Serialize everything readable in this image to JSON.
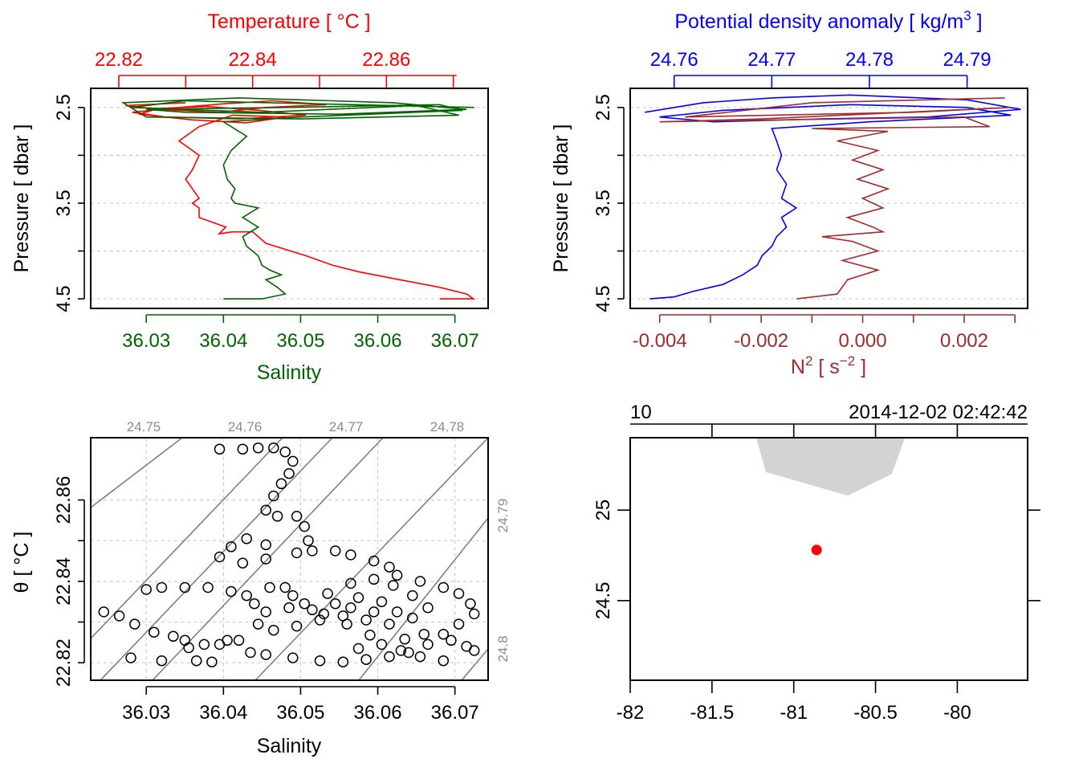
{
  "colors": {
    "temperature": "#ff0000",
    "salinity": "#006400",
    "density": "#0000ff",
    "n2": "#a52a2a",
    "grid": "#cccccc",
    "isopycnal": "#808080",
    "coast": "#d3d3d3",
    "station": "#ff0000"
  },
  "chart_data": [
    {
      "type": "line",
      "panel": "TS profile",
      "top_axis_label": "Temperature [ °C ]",
      "top_ticks": [
        "22.82",
        "22.84",
        "22.86"
      ],
      "top_tick_values": [
        22.82,
        22.84,
        22.86
      ],
      "bottom_axis_label": "Salinity",
      "bottom_ticks": [
        "36.03",
        "36.04",
        "36.05",
        "36.06",
        "36.07"
      ],
      "bottom_tick_values": [
        36.03,
        36.04,
        36.05,
        36.06,
        36.07
      ],
      "ylabel": "Pressure [ dbar ]",
      "y_ticks": [
        "2.5",
        "3.5",
        "4.5"
      ],
      "y_tick_values": [
        2.5,
        3.5,
        4.5
      ],
      "ylim": [
        4.6,
        2.3
      ],
      "temperature_xlim": [
        22.8158,
        22.8752
      ],
      "salinity_xlim": [
        36.0228,
        36.0743
      ],
      "grid": true,
      "series": [
        {
          "name": "Temperature",
          "x": [
            22.83,
            22.821,
            22.826,
            22.835,
            22.842,
            22.851,
            22.843,
            22.836,
            22.829,
            22.822,
            22.827,
            22.838,
            22.848,
            22.841,
            22.833,
            22.826,
            22.823,
            22.831,
            22.839,
            22.845,
            22.837,
            22.832,
            22.829,
            22.832,
            22.831,
            22.83,
            22.831,
            22.832,
            22.831,
            22.832,
            22.832,
            22.834,
            22.836,
            22.835,
            22.837,
            22.84,
            22.842,
            22.848,
            22.852,
            22.856,
            22.862,
            22.868,
            22.872,
            22.873,
            22.868
          ],
          "y": [
            2.45,
            2.48,
            2.52,
            2.55,
            2.5,
            2.47,
            2.43,
            2.46,
            2.5,
            2.55,
            2.6,
            2.62,
            2.58,
            2.53,
            2.49,
            2.51,
            2.57,
            2.63,
            2.66,
            2.6,
            2.58,
            2.7,
            2.85,
            3.0,
            3.15,
            3.25,
            3.35,
            3.45,
            3.5,
            3.55,
            3.65,
            3.7,
            3.75,
            3.82,
            3.8,
            3.8,
            3.92,
            4.05,
            4.15,
            4.22,
            4.3,
            4.38,
            4.45,
            4.5,
            4.5
          ]
        },
        {
          "name": "Salinity",
          "x": [
            36.0725,
            36.035,
            36.028,
            36.045,
            36.065,
            36.0705,
            36.05,
            36.03,
            36.027,
            36.042,
            36.062,
            36.0715,
            36.055,
            36.035,
            36.03,
            36.048,
            36.068,
            36.071,
            36.05,
            36.04,
            36.043,
            36.041,
            36.04,
            36.0405,
            36.0415,
            36.041,
            36.0415,
            36.0445,
            36.0425,
            36.0445,
            36.0425,
            36.043,
            36.0445,
            36.045,
            36.046,
            36.0475,
            36.0455,
            36.047,
            36.048,
            36.045,
            36.04
          ],
          "y": [
            2.5,
            2.43,
            2.5,
            2.55,
            2.48,
            2.58,
            2.62,
            2.6,
            2.45,
            2.4,
            2.45,
            2.52,
            2.57,
            2.55,
            2.52,
            2.5,
            2.47,
            2.53,
            2.6,
            2.65,
            2.8,
            2.95,
            3.1,
            3.25,
            3.35,
            3.45,
            3.5,
            3.55,
            3.65,
            3.75,
            3.85,
            3.95,
            4.05,
            4.15,
            4.2,
            4.25,
            4.3,
            4.38,
            4.45,
            4.5,
            4.5
          ]
        }
      ]
    },
    {
      "type": "line",
      "panel": "density and N2 profile",
      "top_axis_label": "Potential density anomaly [ kg/m",
      "top_axis_label_sup": "3",
      "top_axis_label_end": " ]",
      "top_ticks": [
        "24.76",
        "24.77",
        "24.78",
        "24.79"
      ],
      "top_tick_values": [
        24.76,
        24.77,
        24.78,
        24.79
      ],
      "bottom_axis_label": "N",
      "bottom_axis_label_sup1": "2",
      "bottom_axis_label_mid": " [ s",
      "bottom_axis_label_sup2": "−2",
      "bottom_axis_label_end": " ]",
      "bottom_ticks": [
        "-0.004",
        "-0.002",
        "0.000",
        "0.002"
      ],
      "bottom_tick_values": [
        -0.004,
        -0.002,
        0.0,
        0.002
      ],
      "bottom_minor_tick_values": [
        -0.003,
        -0.001,
        0.001,
        0.003
      ],
      "ylabel": "Pressure [ dbar ]",
      "y_ticks": [
        "2.5",
        "3.5",
        "4.5"
      ],
      "y_tick_values": [
        2.5,
        3.5,
        4.5
      ],
      "ylim": [
        4.6,
        2.3
      ],
      "density_xlim": [
        24.7555,
        24.7962
      ],
      "n2_xlim": [
        -0.00458,
        0.00325
      ],
      "grid": true,
      "series": [
        {
          "name": "Potential density anomaly",
          "x": [
            24.757,
            24.763,
            24.77,
            24.778,
            24.79,
            24.7955,
            24.786,
            24.775,
            24.764,
            24.7585,
            24.765,
            24.778,
            24.79,
            24.7945,
            24.78,
            24.77,
            24.7705,
            24.771,
            24.7705,
            24.7715,
            24.771,
            24.7725,
            24.771,
            24.7715,
            24.7705,
            24.77,
            24.769,
            24.7685,
            24.767,
            24.765,
            24.762,
            24.76,
            24.7575
          ],
          "y": [
            2.55,
            2.45,
            2.4,
            2.37,
            2.42,
            2.52,
            2.6,
            2.62,
            2.65,
            2.6,
            2.53,
            2.47,
            2.5,
            2.58,
            2.65,
            2.72,
            2.85,
            3.0,
            3.15,
            3.3,
            3.45,
            3.55,
            3.65,
            3.75,
            3.85,
            3.95,
            4.05,
            4.15,
            4.25,
            4.35,
            4.42,
            4.48,
            4.5
          ]
        },
        {
          "name": "N2",
          "x": [
            0.0028,
            -0.001,
            -0.0035,
            0.001,
            0.0029,
            -0.002,
            -0.004,
            0.002,
            0.0025,
            -0.001,
            0.0005,
            -0.0005,
            0.0003,
            -0.0002,
            0.0004,
            -0.0001,
            0.0005,
            0.0,
            0.0004,
            -0.0003,
            0.0002,
            0.0004,
            -0.0008,
            -0.0002,
            0.0003,
            -0.0004,
            0.0003,
            -0.0003,
            -0.0005,
            -0.0013
          ],
          "y": [
            2.4,
            2.45,
            2.6,
            2.55,
            2.5,
            2.62,
            2.65,
            2.6,
            2.7,
            2.72,
            2.75,
            2.85,
            2.95,
            3.05,
            3.15,
            3.25,
            3.35,
            3.45,
            3.55,
            3.65,
            3.75,
            3.8,
            3.85,
            3.9,
            4.0,
            4.1,
            4.2,
            4.3,
            4.45,
            4.5
          ]
        }
      ]
    },
    {
      "type": "scatter",
      "panel": "TS diagram",
      "xlabel": "Salinity",
      "x_ticks": [
        "36.03",
        "36.04",
        "36.05",
        "36.06",
        "36.07"
      ],
      "x_tick_values": [
        36.03,
        36.04,
        36.05,
        36.06,
        36.07
      ],
      "ylabel": "θ [ °C ]",
      "y_ticks": [
        "22.82",
        "22.84",
        "22.86"
      ],
      "y_tick_values": [
        22.82,
        22.84,
        22.86
      ],
      "y_minor_tick_values": [
        22.83,
        22.85
      ],
      "xlim": [
        36.0228,
        36.0743
      ],
      "ylim": [
        22.8157,
        22.8753
      ],
      "grid": true,
      "isopycnal_labels": [
        "24.75",
        "24.76",
        "24.77",
        "24.78",
        "24.79",
        "24.8"
      ],
      "points": [
        [
          36.0355,
          22.8237
        ],
        [
          36.028,
          22.8212
        ],
        [
          36.032,
          22.8205
        ],
        [
          36.0365,
          22.8205
        ],
        [
          36.0385,
          22.8202
        ],
        [
          36.0245,
          22.8325
        ],
        [
          36.0265,
          22.8315
        ],
        [
          36.0285,
          22.8295
        ],
        [
          36.031,
          22.8275
        ],
        [
          36.0335,
          22.8265
        ],
        [
          36.035,
          22.8255
        ],
        [
          36.0375,
          22.8245
        ],
        [
          36.0395,
          22.8245
        ],
        [
          36.0405,
          22.8255
        ],
        [
          36.042,
          22.8255
        ],
        [
          36.03,
          22.838
        ],
        [
          36.032,
          22.8385
        ],
        [
          36.035,
          22.8385
        ],
        [
          36.038,
          22.8385
        ],
        [
          36.041,
          22.8375
        ],
        [
          36.043,
          22.8365
        ],
        [
          36.044,
          22.8345
        ],
        [
          36.046,
          22.8385
        ],
        [
          36.048,
          22.8385
        ],
        [
          36.049,
          22.8365
        ],
        [
          36.0395,
          22.8725
        ],
        [
          36.0425,
          22.8725
        ],
        [
          36.0445,
          22.8728
        ],
        [
          36.0465,
          22.8728
        ],
        [
          36.048,
          22.8718
        ],
        [
          36.049,
          22.8695
        ],
        [
          36.0485,
          22.8665
        ],
        [
          36.0475,
          22.864
        ],
        [
          36.0465,
          22.861
        ],
        [
          36.0455,
          22.8575
        ],
        [
          36.047,
          22.856
        ],
        [
          36.0495,
          22.856
        ],
        [
          36.0505,
          22.8535
        ],
        [
          36.051,
          22.85
        ],
        [
          36.0495,
          22.847
        ],
        [
          36.0455,
          22.849
        ],
        [
          36.043,
          22.8505
        ],
        [
          36.041,
          22.8485
        ],
        [
          36.0395,
          22.846
        ],
        [
          36.0425,
          22.8445
        ],
        [
          36.0455,
          22.8455
        ],
        [
          36.0515,
          22.8475
        ],
        [
          36.0545,
          22.8475
        ],
        [
          36.0565,
          22.8465
        ],
        [
          36.0595,
          22.845
        ],
        [
          36.0615,
          22.8435
        ],
        [
          36.0625,
          22.8415
        ],
        [
          36.0655,
          22.84
        ],
        [
          36.0685,
          22.8385
        ],
        [
          36.0705,
          22.837
        ],
        [
          36.072,
          22.8345
        ],
        [
          36.0725,
          22.832
        ],
        [
          36.0705,
          22.8295
        ],
        [
          36.0685,
          22.827
        ],
        [
          36.0665,
          22.8245
        ],
        [
          36.064,
          22.8225
        ],
        [
          36.0615,
          22.8215
        ],
        [
          36.0585,
          22.8208
        ],
        [
          36.0555,
          22.8202
        ],
        [
          36.0525,
          22.8205
        ],
        [
          36.049,
          22.8212
        ],
        [
          36.0455,
          22.822
        ],
        [
          36.0435,
          22.8225
        ],
        [
          36.0575,
          22.8235
        ],
        [
          36.0605,
          22.8245
        ],
        [
          36.0635,
          22.8258
        ],
        [
          36.066,
          22.827
        ],
        [
          36.0695,
          22.8255
        ],
        [
          36.0715,
          22.824
        ],
        [
          36.0725,
          22.823
        ],
        [
          36.0685,
          22.8205
        ],
        [
          36.0655,
          22.8215
        ],
        [
          36.063,
          22.823
        ],
        [
          36.059,
          22.8268
        ],
        [
          36.056,
          22.8295
        ],
        [
          36.053,
          22.832
        ],
        [
          36.0505,
          22.8345
        ],
        [
          36.0535,
          22.837
        ],
        [
          36.0565,
          22.8395
        ],
        [
          36.0595,
          22.8405
        ],
        [
          36.062,
          22.839
        ],
        [
          36.0645,
          22.8365
        ],
        [
          36.0665,
          22.8335
        ],
        [
          36.0645,
          22.831
        ],
        [
          36.0615,
          22.8295
        ],
        [
          36.0585,
          22.8305
        ],
        [
          36.0555,
          22.8315
        ],
        [
          36.0525,
          22.8305
        ],
        [
          36.0495,
          22.829
        ],
        [
          36.0465,
          22.828
        ],
        [
          36.0445,
          22.8295
        ],
        [
          36.0455,
          22.8325
        ],
        [
          36.0485,
          22.8335
        ],
        [
          36.0515,
          22.833
        ],
        [
          36.0545,
          22.8345
        ],
        [
          36.0575,
          22.836
        ],
        [
          36.0605,
          22.835
        ],
        [
          36.0625,
          22.8325
        ],
        [
          36.0595,
          22.8325
        ],
        [
          36.0565,
          22.8335
        ]
      ]
    },
    {
      "type": "map",
      "panel": "station map",
      "top_left_label": "10",
      "top_right_label": "2014-12-02 02:42:42",
      "x_ticks": [
        "-82",
        "-81.5",
        "-81",
        "-80.5",
        "-80"
      ],
      "x_tick_values": [
        -82,
        -81.5,
        -81,
        -80.5,
        -80
      ],
      "x_top_minor_values": [
        -81.5,
        -81,
        -80.5,
        -80
      ],
      "y_ticks": [
        "24.5",
        "25"
      ],
      "y_tick_values": [
        24.5,
        25
      ],
      "xlim": [
        -82,
        -79.57
      ],
      "ylim": [
        24.06,
        25.4
      ],
      "coastline": {
        "lon": [
          -81.23,
          -81.17,
          -80.67,
          -80.4,
          -80.32
        ],
        "lat": [
          25.4,
          25.21,
          25.08,
          25.2,
          25.4
        ]
      },
      "station": {
        "lon": -80.86,
        "lat": 24.78
      }
    }
  ]
}
